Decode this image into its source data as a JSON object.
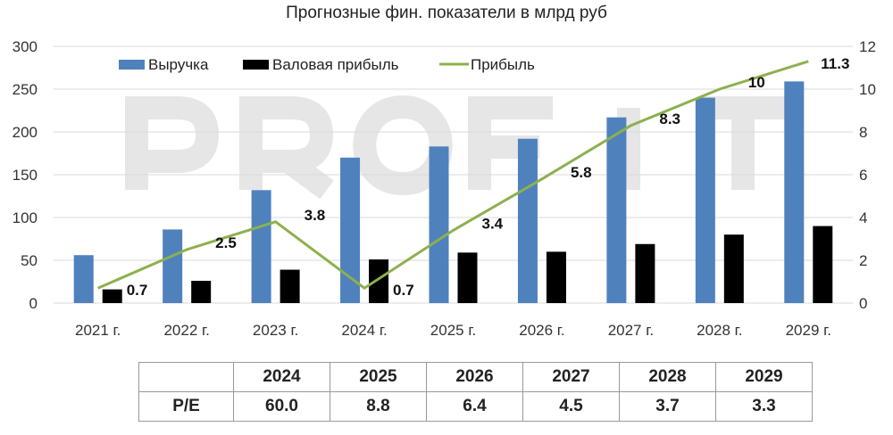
{
  "chart_data": {
    "type": "bar+line",
    "title": "Прогнозные фин. показатели в млрд руб",
    "categories": [
      "2021 г.",
      "2022 г.",
      "2023 г.",
      "2024 г.",
      "2025 г.",
      "2026 г.",
      "2027 г.",
      "2028 г.",
      "2029 г."
    ],
    "y_left": {
      "range": [
        0,
        300
      ],
      "ticks": [
        "0",
        "50",
        "100",
        "150",
        "200",
        "250",
        "300"
      ]
    },
    "y_right": {
      "range": [
        0,
        12
      ],
      "ticks": [
        "0",
        "2",
        "4",
        "6",
        "8",
        "10",
        "12"
      ]
    },
    "grid": true,
    "legend_position": "top",
    "series": [
      {
        "name": "Выручка",
        "type": "bar",
        "axis": "left",
        "color": "#4f81bd",
        "values": [
          56,
          86,
          132,
          170,
          183,
          192,
          217,
          240,
          259
        ]
      },
      {
        "name": "Валовая прибыль",
        "type": "bar",
        "axis": "left",
        "color": "#000000",
        "values": [
          16,
          26,
          39,
          51,
          59,
          60,
          69,
          80,
          90
        ]
      },
      {
        "name": "Прибыль",
        "type": "line",
        "axis": "right",
        "color": "#8db04e",
        "values": [
          0.7,
          2.5,
          3.8,
          0.7,
          3.4,
          5.8,
          8.3,
          10,
          11.3
        ],
        "labels": [
          "0.7",
          "2.5",
          "3.8",
          "0.7",
          "3.4",
          "5.8",
          "8.3",
          "10",
          "11.3"
        ]
      }
    ],
    "watermark": "PROFIT"
  },
  "table": {
    "years": [
      "2024",
      "2025",
      "2026",
      "2027",
      "2028",
      "2029"
    ],
    "row_label": "P/E",
    "values": [
      "60.0",
      "8.8",
      "6.4",
      "4.5",
      "3.7",
      "3.3"
    ]
  }
}
